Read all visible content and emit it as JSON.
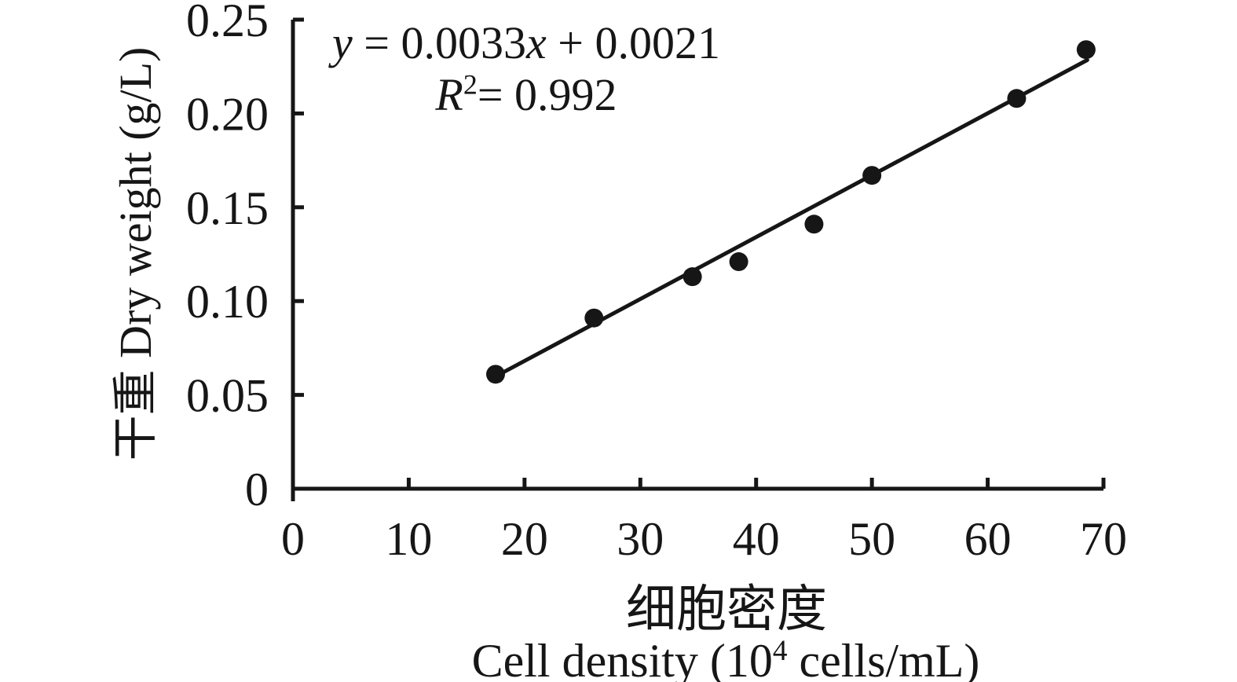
{
  "figure": {
    "background": "#ffffff",
    "ink_color": "#161616"
  },
  "annotation": {
    "eq_y_var": "y",
    "eq_mid": " = 0.0033",
    "eq_x_var": "x",
    "eq_tail": " + 0.0021",
    "r_var": "R",
    "r_sup": "2",
    "r_tail": "= 0.992"
  },
  "axes": {
    "y_title": "干重 Dry weight (g/L)",
    "x_title_zh": "细胞密度",
    "x_title_en_pre": "Cell density (10",
    "x_title_en_sup": "4",
    "x_title_en_post": " cells/mL)"
  },
  "chart_data": {
    "type": "scatter",
    "title": "",
    "xlabel": "细胞密度 Cell density (10⁴ cells/mL)",
    "ylabel": "干重 Dry weight (g/L)",
    "xlim": [
      0,
      70
    ],
    "ylim": [
      0,
      0.25
    ],
    "grid": false,
    "legend": "none",
    "marker": {
      "shape": "circle",
      "color": "#161616",
      "radius_px": 12
    },
    "points": [
      {
        "x": 17.5,
        "y": 0.061
      },
      {
        "x": 26,
        "y": 0.091
      },
      {
        "x": 34.5,
        "y": 0.113
      },
      {
        "x": 38.5,
        "y": 0.121
      },
      {
        "x": 45,
        "y": 0.141
      },
      {
        "x": 50,
        "y": 0.167
      },
      {
        "x": 62.5,
        "y": 0.208
      },
      {
        "x": 68.5,
        "y": 0.234
      }
    ],
    "trendline": {
      "slope": 0.0033,
      "intercept": 0.0021,
      "x_start": 17.5,
      "x_end": 68.6,
      "equation_text": "y = 0.0033x + 0.0021",
      "r_squared_text": "R²= 0.992"
    },
    "x_ticks": [
      {
        "v": 0,
        "label": "0"
      },
      {
        "v": 10,
        "label": "10"
      },
      {
        "v": 20,
        "label": "20"
      },
      {
        "v": 30,
        "label": "30"
      },
      {
        "v": 40,
        "label": "40"
      },
      {
        "v": 50,
        "label": "50"
      },
      {
        "v": 60,
        "label": "60"
      },
      {
        "v": 70,
        "label": "70"
      }
    ],
    "y_ticks": [
      {
        "v": 0,
        "label": "0"
      },
      {
        "v": 0.05,
        "label": "0.05"
      },
      {
        "v": 0.1,
        "label": "0.10"
      },
      {
        "v": 0.15,
        "label": "0.15"
      },
      {
        "v": 0.2,
        "label": "0.20"
      },
      {
        "v": 0.25,
        "label": "0.25"
      }
    ]
  }
}
